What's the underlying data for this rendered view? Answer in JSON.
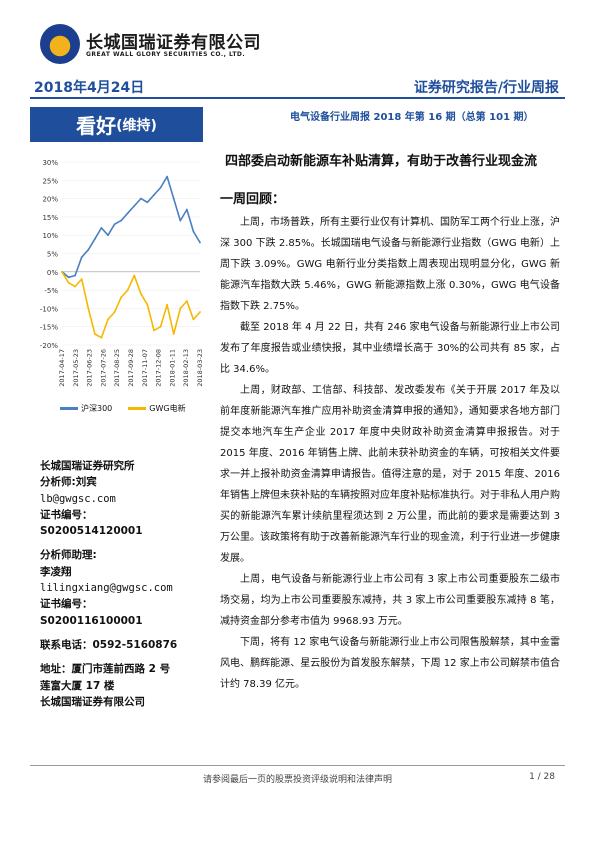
{
  "header": {
    "company_cn": "长城国瑞证券有限公司",
    "company_en": "GREAT WALL GLORY SECURITIES CO., LTD.",
    "date": "2018年4月24日",
    "report_type": "证券研究报告/行业周报",
    "rating_main": "看好",
    "rating_sub": "(维持)",
    "subtitle": "电气设备行业周报 2018 年第 16 期（总第 101 期）"
  },
  "title": "四部委启动新能源车补贴清算，有助于改善行业现金流",
  "section": "一周回顾：",
  "paragraphs": [
    "上周，市场普跌，所有主要行业仅有计算机、国防军工两个行业上涨，沪深 300 下跌 2.85%。长城国瑞电气设备与新能源行业指数（GWG 电新）上周下跌 3.09%。GWG 电新行业分类指数上周表现出现明显分化，GWG 新能源汽车指数大跌 5.46%，GWG 新能源指数上涨 0.30%，GWG 电气设备指数下跌 2.75%。",
    "截至 2018 年 4 月 22 日，共有 246 家电气设备与新能源行业上市公司发布了年度报告或业绩快报，其中业绩增长高于 30%的公司共有 85 家，占比 34.6%。",
    "上周，财政部、工信部、科技部、发改委发布《关于开展 2017 年及以前年度新能源汽车推广应用补助资金清算申报的通知》，通知要求各地方部门提交本地汽车生产企业 2017 年度中央财政补助资金清算申报报告。对于 2015 年度、2016 年销售上牌、此前未获补助资金的车辆，可按相关文件要求一并上报补助资金清算申请报告。值得注意的是，对于 2015 年度、2016 年销售上牌但未获补贴的车辆按照对应年度补贴标准执行。对于非私人用户购买的新能源汽车累计续航里程须达到 2 万公里，而此前的要求是需要达到 3 万公里。该政策将有助于改善新能源汽车行业的现金流，利于行业进一步健康发展。",
    "上周，电气设备与新能源行业上市公司有 3 家上市公司重要股东二级市场交易，均为上市公司重要股东减持，共 3 家上市公司重要股东减持 8 笔，减持资金部分参考市值为 9968.93 万元。",
    "下周，将有 12 家电气设备与新能源行业上市公司限售股解禁，其中金雷风电、鹏辉能源、星云股份为首发股东解禁，下周 12 家上市公司解禁市值合计约 78.39 亿元。"
  ],
  "sidebar": {
    "institute": "长城国瑞证券研究所",
    "analyst_label": "分析师:刘宾",
    "analyst_email": "lb@gwgsc.com",
    "cert_label": "证书编号：",
    "cert_1": "S0200514120001",
    "assistant_label": "分析师助理:",
    "assistant_name": "李凌翔",
    "assistant_email": "lilingxiang@gwgsc.com",
    "cert_label_2": "证书编号：",
    "cert_2": "S0200116100001",
    "phone": "联系电话：0592-5160876",
    "address_1": "地址：厦门市莲前西路 2 号",
    "address_2": "莲富大厦 17 楼",
    "address_3": "长城国瑞证券有限公司"
  },
  "footer": {
    "disclaimer": "请参阅最后一页的股票投资评级说明和法律声明",
    "page": "1 / 28"
  },
  "chart_data": {
    "type": "line",
    "x": [
      "2017-04-17",
      "2017-05-03",
      "2017-05-19",
      "2017-06-07",
      "2017-06-23",
      "2017-07-11",
      "2017-07-27",
      "2017-08-14",
      "2017-08-30",
      "2017-09-15",
      "2017-10-09",
      "2017-10-25",
      "2017-11-10",
      "2017-11-28",
      "2017-12-14",
      "2018-01-02",
      "2018-01-18",
      "2018-02-05",
      "2018-02-26",
      "2018-03-14",
      "2018-04-02",
      "2018-04-20"
    ],
    "x_ticks": [
      "2017-04-17",
      "2017-05-23",
      "2017-06-23",
      "2017-07-26",
      "2017-08-25",
      "2017-09-28",
      "2017-11-07",
      "2017-12-08",
      "2018-01-11",
      "2018-02-13",
      "2018-03-23"
    ],
    "series": [
      {
        "name": "沪深300",
        "color": "#4a7fc1",
        "values": [
          0,
          -1.5,
          -1,
          4,
          6,
          9,
          12,
          10,
          13,
          14,
          16,
          18,
          20,
          19,
          21,
          23,
          26,
          20,
          14,
          17,
          11,
          8
        ]
      },
      {
        "name": "GWG电新",
        "color": "#f5b800",
        "values": [
          0,
          -3,
          -4,
          -2,
          -10,
          -17,
          -18,
          -13,
          -11,
          -7,
          -5,
          -1,
          -6,
          -9,
          -16,
          -15,
          -9,
          -17,
          -10,
          -8,
          -13,
          -11
        ]
      }
    ],
    "ylim": [
      -20,
      30
    ],
    "yticks": [
      "30%",
      "25%",
      "20%",
      "15%",
      "10%",
      "5%",
      "0%",
      "-5%",
      "-10%",
      "-15%",
      "-20%"
    ],
    "legend": "bottom"
  }
}
